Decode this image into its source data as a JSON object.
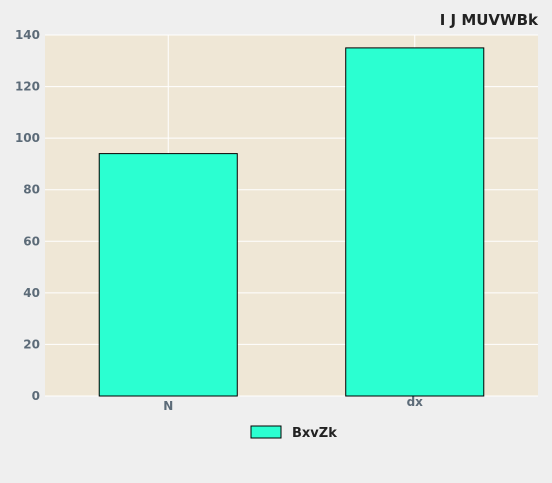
{
  "chart_data": {
    "type": "bar",
    "title": "I J MUVWBk",
    "xlabel": "",
    "ylabel": "",
    "categories": [
      "N",
      "dx"
    ],
    "series": [
      {
        "name": "BxvZk",
        "values": [
          94,
          135
        ],
        "color": "#2bffd1"
      }
    ],
    "ylim": [
      0,
      140
    ],
    "yticks": [
      0,
      20,
      40,
      60,
      80,
      100,
      120,
      140
    ],
    "grid": true,
    "legend_position": "bottom-center",
    "colors": {
      "plot_background": "#efe7d6",
      "page_background": "#efefef",
      "gridline": "#ffffff",
      "bar_edge": "#000000"
    }
  }
}
